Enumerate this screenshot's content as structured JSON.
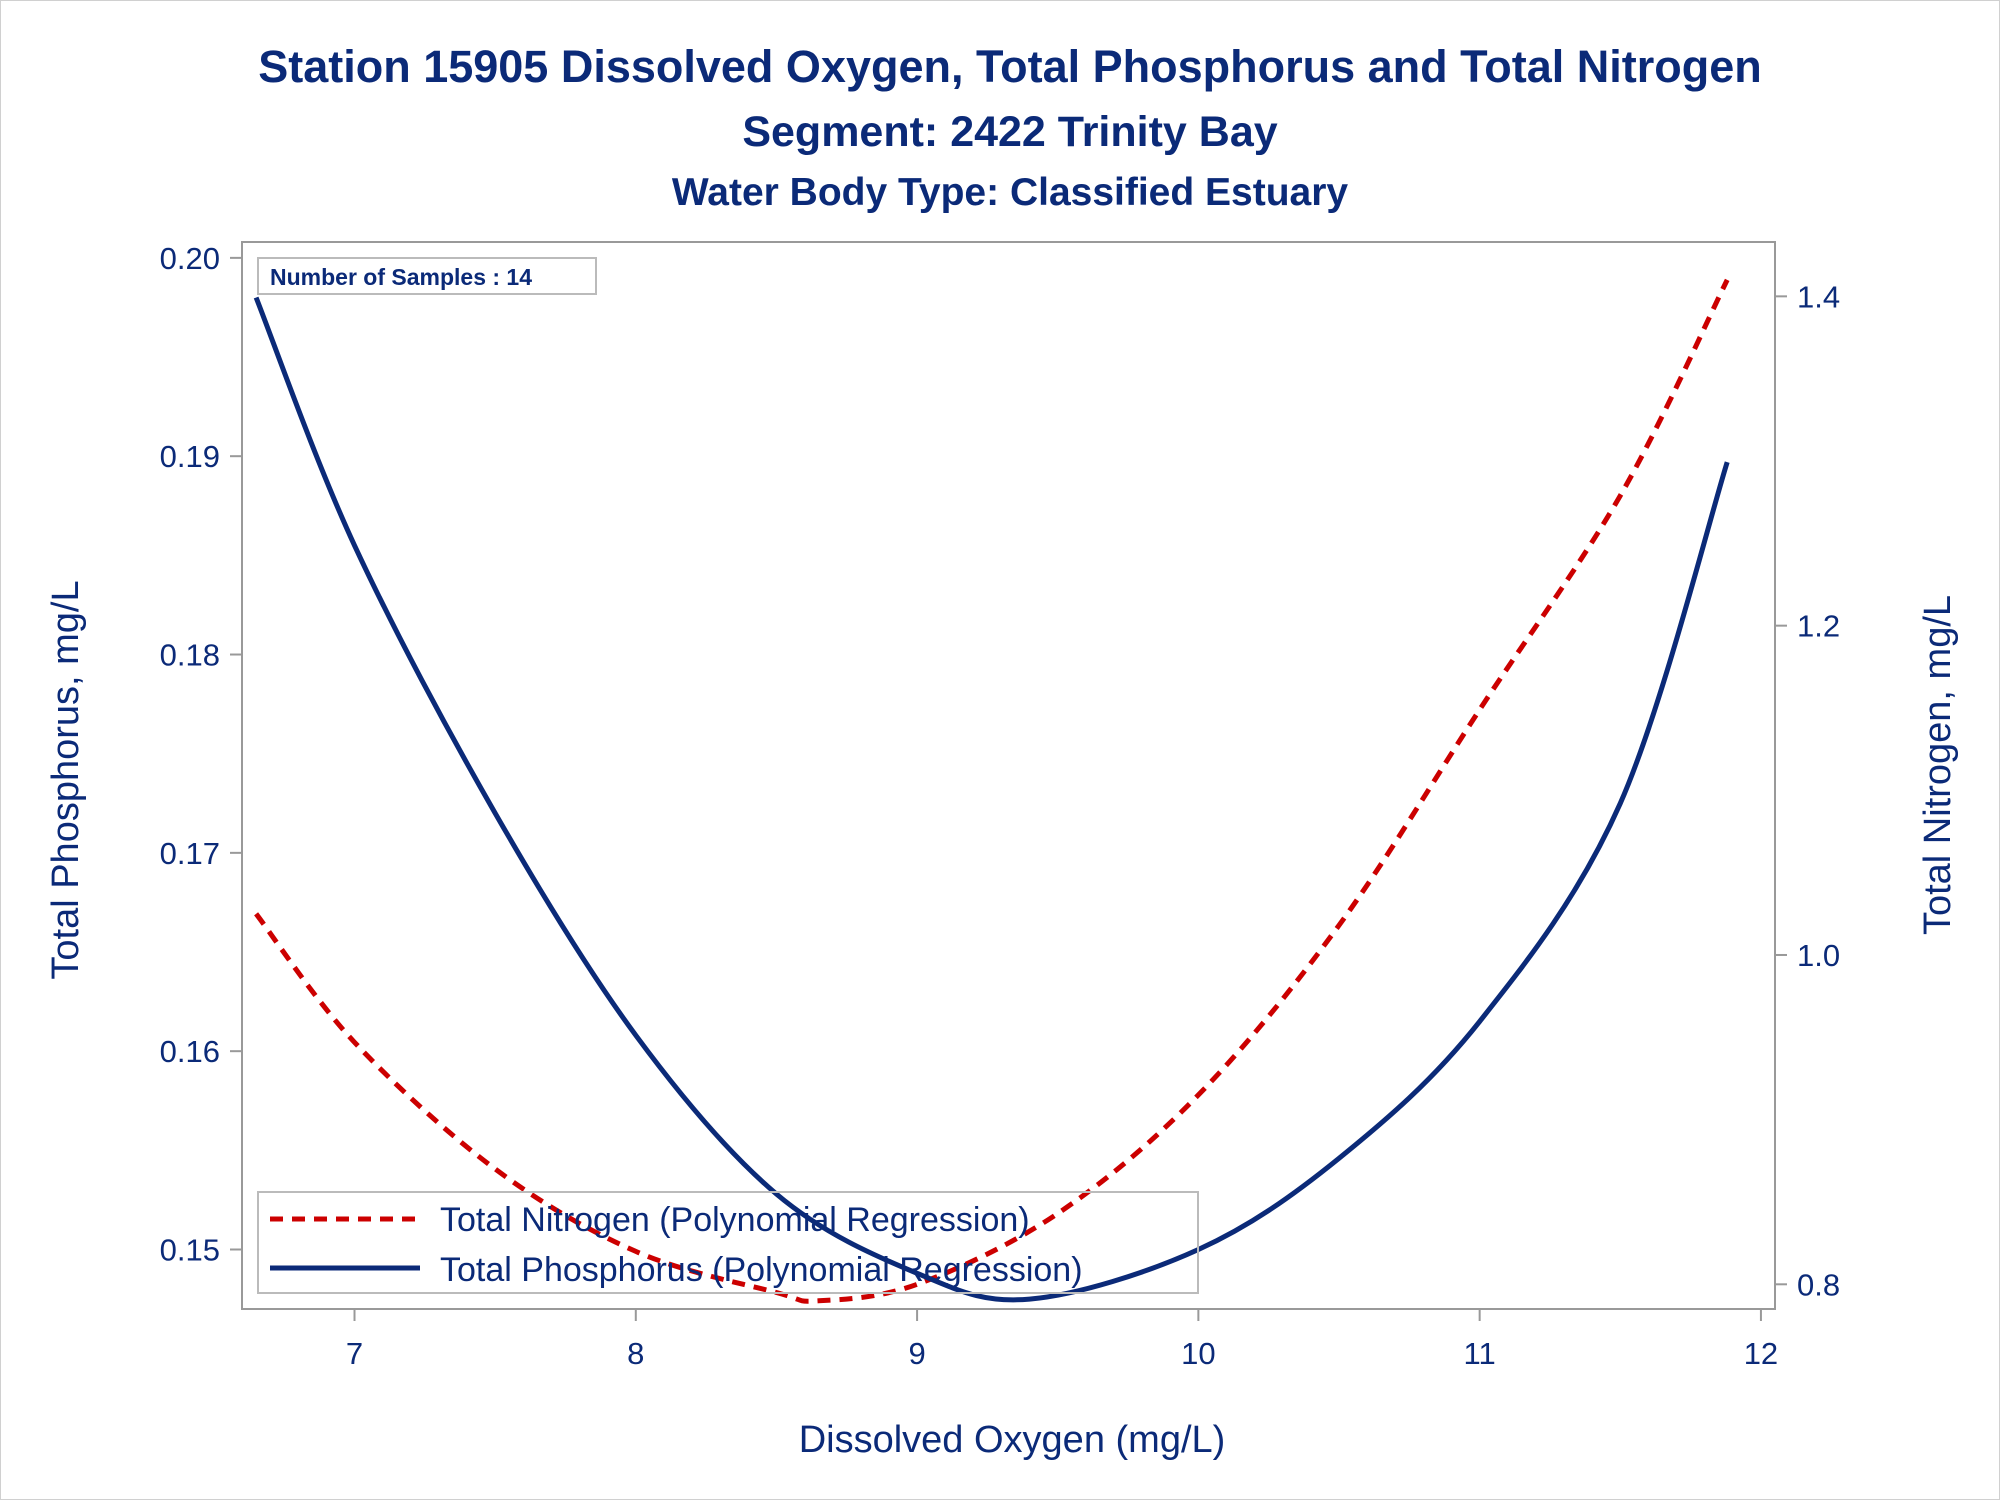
{
  "chart_data": {
    "type": "line",
    "title": "Station 15905  Dissolved Oxygen, Total Phosphorus and Total Nitrogen",
    "subtitle": "Segment: 2422  Trinity Bay",
    "subtitle2": "Water Body Type: Classified Estuary",
    "xlabel": "Dissolved Oxygen (mg/L)",
    "ylabel": "Total Phosphorus, mg/L",
    "y2label": "Total Nitrogen, mg/L",
    "xlim": [
      6.6,
      12.05
    ],
    "ylim": [
      0.147,
      0.2008
    ],
    "y2lim": [
      0.785,
      1.433
    ],
    "x_ticks": [
      "7",
      "8",
      "9",
      "10",
      "11",
      "12"
    ],
    "y_ticks": [
      "0.15",
      "0.16",
      "0.17",
      "0.18",
      "0.19",
      "0.20"
    ],
    "y2_ticks": [
      "0.8",
      "1.0",
      "1.2",
      "1.4"
    ],
    "grid": false,
    "legend_position": "bottom-left",
    "annotation": "Number of Samples : 14",
    "colors": {
      "text": "#0b2a78",
      "nitrogen": "#cc0000",
      "phosphorus": "#0b2a78",
      "axis": "#999999"
    },
    "series": [
      {
        "name": "Total Nitrogen (Polynomial Regression)",
        "axis": "right",
        "style": "dashed",
        "x": [
          6.65,
          7.0,
          7.5,
          8.0,
          8.5,
          8.65,
          9.0,
          9.5,
          10.0,
          10.5,
          11.0,
          11.5,
          11.88
        ],
        "y": [
          1.025,
          0.947,
          0.87,
          0.82,
          0.795,
          0.79,
          0.8,
          0.843,
          0.915,
          1.018,
          1.149,
          1.279,
          1.41
        ]
      },
      {
        "name": "Total Phosphorus (Polynomial Regression)",
        "axis": "left",
        "style": "solid",
        "x": [
          6.65,
          7.0,
          7.5,
          8.0,
          8.5,
          9.0,
          9.4,
          10.0,
          10.5,
          11.0,
          11.5,
          11.88
        ],
        "y": [
          0.198,
          0.1855,
          0.172,
          0.1608,
          0.1528,
          0.1488,
          0.1475,
          0.15,
          0.1546,
          0.1615,
          0.1725,
          0.1897
        ]
      }
    ]
  }
}
